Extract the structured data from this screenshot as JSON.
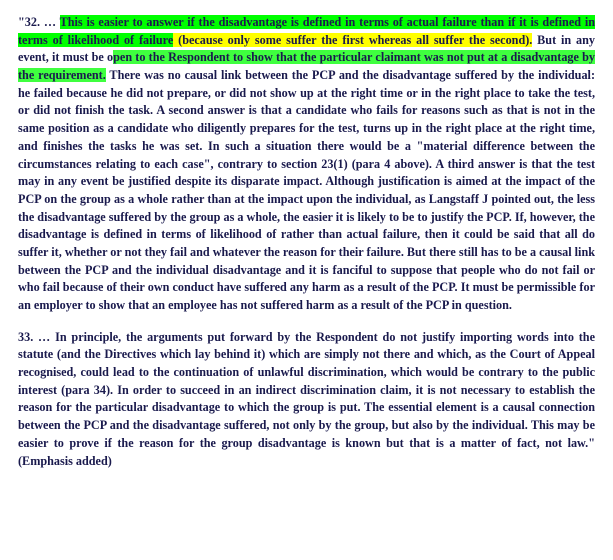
{
  "text_color": "#1a1a4d",
  "font_size": 12.2,
  "line_height": 1.45,
  "font_weight": "bold",
  "font_family": "Georgia, Times New Roman, serif",
  "background_color": "#ffffff",
  "highlight_colors": {
    "green": "#00ff00",
    "yellow": "#ffff00",
    "green_light": "#3fff3f"
  },
  "para1": {
    "num": "\"32. … ",
    "h1": "This is easier to answer if the disadvantage is defined in terms of actual failure than if it is defined in terms of likelihood of failure",
    "yellow": " (because only some suffer the first whereas all suffer the second).",
    "plain1": " But in any event, it must be o",
    "h2": "pen to the Respondent to show that the particular claimant was not put at a disadvantage by the requirement.",
    "plain2": " There was no causal link between the PCP and the disadvantage suffered by the individual: he failed because he did not prepare, or did not show up at the right time or in the right place to take the test, or did not finish the task. A second answer is that a candidate who fails for reasons such as that is not in the same position as a candidate who diligently prepares for the test, turns up in the right place at the right time, and finishes the tasks he was set. In such a situation there would be a \"material difference between the circumstances relating to each case\", contrary to section 23(1) (para 4 above). A third answer is that the test may in any event be justified despite its disparate impact. Although justification is aimed at the impact of the PCP on the group as a whole rather than at the impact upon the individual, as Langstaff J pointed out, the less the disadvantage suffered by the group as a whole, the easier it is likely to be to justify the PCP. If, however, the disadvantage is defined in terms of likelihood of rather than actual failure, then it could be said that all do suffer it, whether or not they fail and whatever the reason for their failure. But there still has to be a causal link between the PCP and the individual disadvantage and it is fanciful to suppose that people who do not fail or who fail because of their own conduct have suffered any harm as a result of the PCP. It must be permissible for an employer to show that an employee has not suffered harm as a result of the PCP in question."
  },
  "para2": {
    "text": "33. … In principle, the arguments put forward by the Respondent do not justify importing words into the statute (and the Directives which lay behind it) which are simply not there and which, as the Court of Appeal recognised, could lead to the continuation of unlawful discrimination, which would be contrary to the public interest (para 34). In order to succeed in an indirect discrimination claim, it is not necessary to establish the reason for the particular disadvantage to which the group is put. The essential element is a causal connection between the PCP and the disadvantage suffered, not only by the group, but also by the individual. This may be easier to prove if the reason for the group disadvantage is known but that is a matter of fact, not law.\" (Emphasis added)"
  }
}
